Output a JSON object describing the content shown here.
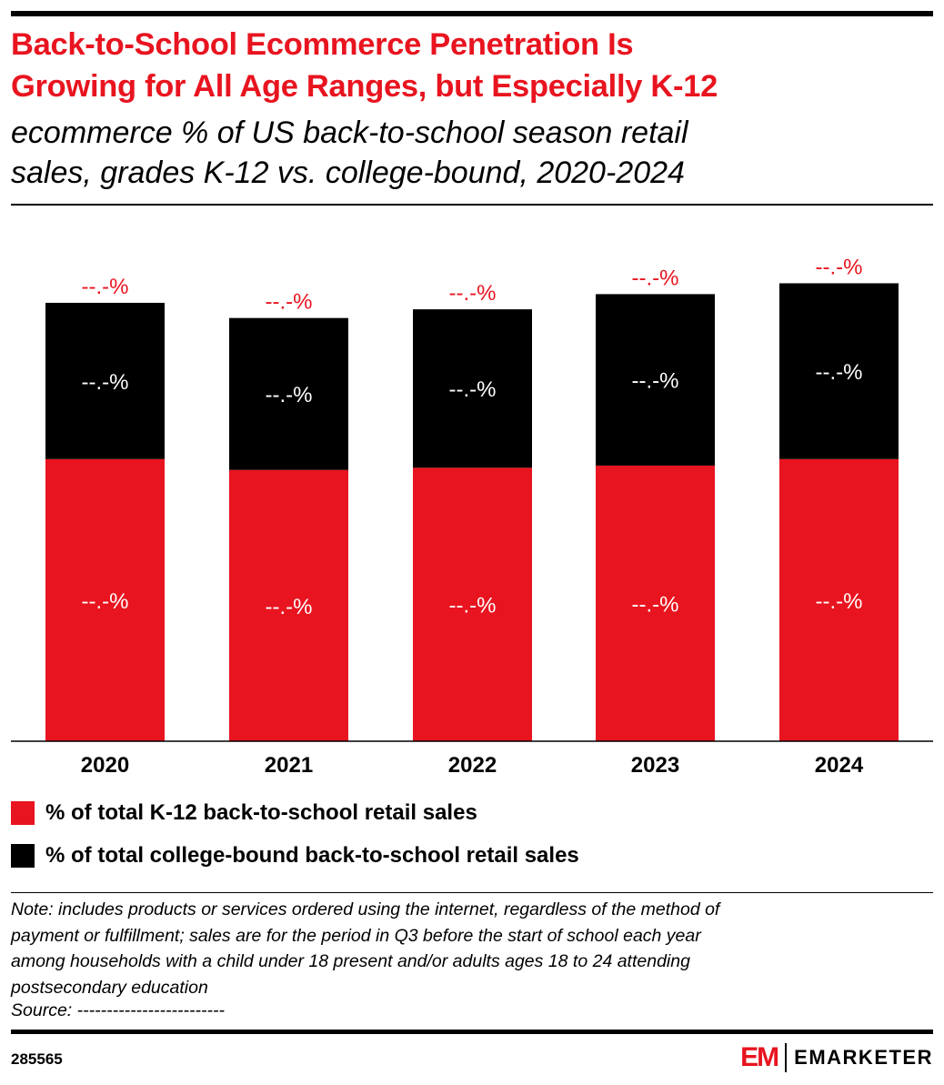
{
  "header": {
    "title": "Back-to-School Ecommerce Penetration Is\nGrowing for All Age Ranges, but Especially K-12",
    "subtitle": "ecommerce % of US back-to-school season retail\nsales, grades K-12 vs. college-bound, 2020-2024"
  },
  "colors": {
    "k12": "#e8141f",
    "college": "#000000",
    "total_label": "#e8141f",
    "accent": "#e8141f"
  },
  "chart_data": {
    "type": "bar",
    "stacked": true,
    "categories": [
      "2020",
      "2021",
      "2022",
      "2023",
      "2024"
    ],
    "series": [
      {
        "name": "% of total K-12 back-to-school retail sales",
        "values": [
          13.0,
          12.5,
          12.6,
          12.7,
          13.0
        ],
        "labels": [
          "--.-%",
          "--.-%",
          "--.-%",
          "--.-%",
          "--.-%"
        ]
      },
      {
        "name": "% of total college-bound back-to-school retail sales",
        "values": [
          7.2,
          7.0,
          7.3,
          7.9,
          8.1
        ],
        "labels": [
          "--.-%",
          "--.-%",
          "--.-%",
          "--.-%",
          "--.-%"
        ]
      }
    ],
    "total_labels": [
      "--.-%",
      "--.-%",
      "--.-%",
      "--.-%",
      "--.-%"
    ],
    "ylim": [
      0,
      22
    ],
    "grid": false
  },
  "legend": {
    "items": [
      {
        "label": "% of total K-12 back-to-school retail sales",
        "color": "#e8141f"
      },
      {
        "label": "% of total college-bound back-to-school retail sales",
        "color": "#000000"
      }
    ]
  },
  "footer": {
    "note": "Note: includes products or services ordered using the internet, regardless of the method of\npayment or fulfillment; sales are for the period in Q3 before the start of school each year\namong households with a child under 18 present and/or adults ages 18 to 24 attending\npostsecondary education",
    "source": "Source: -------------------------",
    "chart_id": "285565",
    "brand_mark": "EM",
    "brand_name": "EMARKETER"
  }
}
